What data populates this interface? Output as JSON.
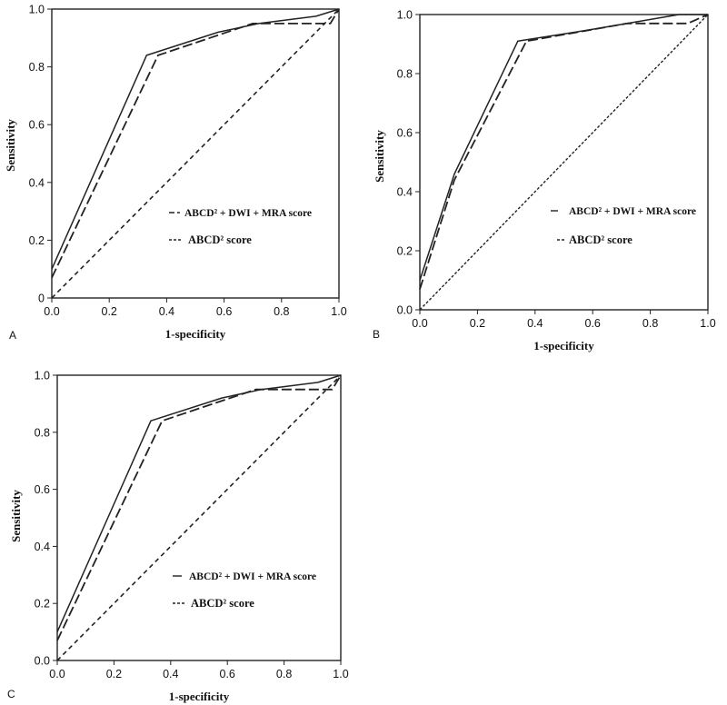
{
  "chart_data": [
    {
      "type": "line",
      "panel_label": "A",
      "xlabel": "1-specificity",
      "ylabel": "Sensitivity",
      "xlim": [
        0,
        1
      ],
      "ylim": [
        0,
        1
      ],
      "x_ticks": [
        "0.0",
        "0.2",
        "0.4",
        "0.6",
        "0.8",
        "1.0"
      ],
      "y_ticks": [
        "0",
        "0.2",
        "0.4",
        "0.6",
        "0.8",
        "1.0"
      ],
      "grid": false,
      "legend_placement": "center-right",
      "legend": [
        {
          "text": "ABCD² + DWI + MRA score",
          "symbol": "— —"
        },
        {
          "text": "ABCD² score",
          "symbol": "- - -"
        }
      ],
      "series": [
        {
          "style": "solid",
          "x": [
            0,
            0.33,
            0.58,
            0.72,
            0.92,
            1.0
          ],
          "y": [
            0.1,
            0.84,
            0.92,
            0.95,
            0.975,
            1.0
          ]
        },
        {
          "style": "dashed",
          "x": [
            0,
            0.37,
            0.55,
            0.7,
            0.97,
            1.0
          ],
          "y": [
            0.07,
            0.84,
            0.9,
            0.95,
            0.95,
            1.0
          ]
        },
        {
          "style": "dashed-short",
          "x": [
            0,
            1
          ],
          "y": [
            0,
            1
          ]
        }
      ]
    },
    {
      "type": "line",
      "panel_label": "B",
      "xlabel": "1-specificity",
      "ylabel": "Sensitivity",
      "xlim": [
        0,
        1
      ],
      "ylim": [
        0,
        1
      ],
      "x_ticks": [
        "0.0",
        "0.2",
        "0.4",
        "0.6",
        "0.8",
        "1.0"
      ],
      "y_ticks": [
        "0.0",
        "0.2",
        "0.4",
        "0.6",
        "0.8",
        "1.0"
      ],
      "grid": false,
      "legend_placement": "center-right",
      "legend": [
        {
          "text": "ABCD² + DWI + MRA score",
          "symbol": "—"
        },
        {
          "text": "ABCD² score",
          "symbol": "- - -"
        }
      ],
      "series": [
        {
          "style": "solid",
          "x": [
            0,
            0.12,
            0.34,
            0.6,
            0.9,
            1.0
          ],
          "y": [
            0.1,
            0.46,
            0.91,
            0.95,
            1.0,
            1.0
          ]
        },
        {
          "style": "dashed",
          "x": [
            0,
            0.12,
            0.37,
            0.72,
            0.93,
            1.0
          ],
          "y": [
            0.07,
            0.44,
            0.91,
            0.97,
            0.97,
            1.0
          ]
        },
        {
          "style": "dotted-dash",
          "x": [
            0,
            1
          ],
          "y": [
            0,
            1
          ]
        }
      ]
    },
    {
      "type": "line",
      "panel_label": "C",
      "xlabel": "1-specificity",
      "ylabel": "Sensitivity",
      "xlim": [
        0,
        1
      ],
      "ylim": [
        0,
        1
      ],
      "x_ticks": [
        "0.0",
        "0.2",
        "0.4",
        "0.6",
        "0.8",
        "1.0"
      ],
      "y_ticks": [
        "0.0",
        "0.2",
        "0.4",
        "0.6",
        "0.8",
        "1.0"
      ],
      "grid": false,
      "legend_placement": "center-right",
      "legend": [
        {
          "text": "ABCD² + DWI + MRA score",
          "symbol": "—"
        },
        {
          "text": "ABCD² score",
          "symbol": "- - -"
        }
      ],
      "series": [
        {
          "style": "solid",
          "x": [
            0,
            0.33,
            0.58,
            0.72,
            0.92,
            1.0
          ],
          "y": [
            0.1,
            0.84,
            0.92,
            0.95,
            0.975,
            1.0
          ]
        },
        {
          "style": "dashed",
          "x": [
            0,
            0.37,
            0.55,
            0.7,
            0.97,
            1.0
          ],
          "y": [
            0.07,
            0.84,
            0.9,
            0.95,
            0.95,
            1.0
          ]
        },
        {
          "style": "dashed-short",
          "x": [
            0,
            1
          ],
          "y": [
            0,
            1
          ]
        }
      ]
    }
  ]
}
